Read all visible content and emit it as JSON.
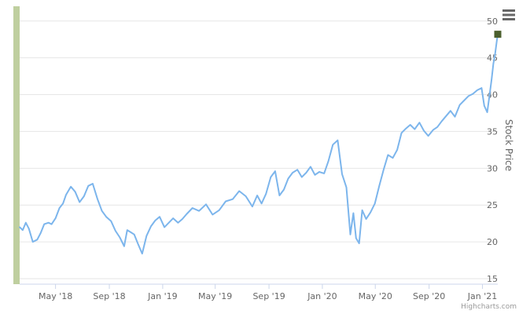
{
  "chart_data": {
    "type": "line",
    "ylabel": "Stock Price",
    "ylim": [
      15,
      52
    ],
    "y_ticks": [
      15,
      20,
      25,
      30,
      35,
      40,
      45,
      50
    ],
    "x_ticks": [
      "May '18",
      "Sep '18",
      "Jan '19",
      "May '19",
      "Sep '19",
      "Jan '20",
      "May '20",
      "Sep '20",
      "Jan '21"
    ],
    "x_tick_dates": [
      "2018-05-01",
      "2018-09-01",
      "2019-01-01",
      "2019-05-01",
      "2019-09-01",
      "2020-01-01",
      "2020-05-01",
      "2020-09-01",
      "2021-01-01"
    ],
    "xlim": [
      "2018-02-08",
      "2021-02-05"
    ],
    "grid": true,
    "legend": "none",
    "y_axis_side": "right",
    "series": [
      {
        "color": "#7cb5ec",
        "x": [
          "2018-02-08",
          "2018-02-15",
          "2018-02-22",
          "2018-03-01",
          "2018-03-10",
          "2018-03-20",
          "2018-03-28",
          "2018-04-05",
          "2018-04-15",
          "2018-04-22",
          "2018-05-01",
          "2018-05-10",
          "2018-05-18",
          "2018-05-25",
          "2018-06-05",
          "2018-06-15",
          "2018-06-25",
          "2018-07-05",
          "2018-07-15",
          "2018-07-25",
          "2018-08-05",
          "2018-08-15",
          "2018-08-25",
          "2018-09-05",
          "2018-09-15",
          "2018-09-25",
          "2018-10-05",
          "2018-10-12",
          "2018-10-20",
          "2018-10-28",
          "2018-11-05",
          "2018-11-15",
          "2018-11-25",
          "2018-12-05",
          "2018-12-15",
          "2018-12-25",
          "2019-01-05",
          "2019-01-15",
          "2019-01-25",
          "2019-02-05",
          "2019-02-15",
          "2019-02-25",
          "2019-03-10",
          "2019-03-25",
          "2019-04-10",
          "2019-04-25",
          "2019-05-10",
          "2019-05-25",
          "2019-06-10",
          "2019-06-25",
          "2019-07-10",
          "2019-07-25",
          "2019-08-05",
          "2019-08-15",
          "2019-08-25",
          "2019-09-05",
          "2019-09-15",
          "2019-09-25",
          "2019-10-05",
          "2019-10-15",
          "2019-10-25",
          "2019-11-05",
          "2019-11-15",
          "2019-11-25",
          "2019-12-05",
          "2019-12-15",
          "2019-12-25",
          "2020-01-05",
          "2020-01-15",
          "2020-01-25",
          "2020-02-05",
          "2020-02-15",
          "2020-02-25",
          "2020-03-05",
          "2020-03-12",
          "2020-03-18",
          "2020-03-25",
          "2020-04-01",
          "2020-04-10",
          "2020-04-20",
          "2020-04-30",
          "2020-05-10",
          "2020-05-20",
          "2020-05-30",
          "2020-06-10",
          "2020-06-20",
          "2020-06-30",
          "2020-07-10",
          "2020-07-20",
          "2020-07-30",
          "2020-08-10",
          "2020-08-20",
          "2020-08-30",
          "2020-09-10",
          "2020-09-20",
          "2020-09-30",
          "2020-10-10",
          "2020-10-20",
          "2020-10-30",
          "2020-11-10",
          "2020-11-20",
          "2020-11-30",
          "2020-12-10",
          "2020-12-20",
          "2020-12-30",
          "2021-01-05",
          "2021-01-12",
          "2021-01-18",
          "2021-01-22",
          "2021-01-26",
          "2021-01-30",
          "2021-02-03",
          "2021-02-05"
        ],
        "y": [
          22.0,
          21.6,
          22.6,
          21.8,
          20.0,
          20.3,
          21.2,
          22.4,
          22.6,
          22.4,
          23.2,
          24.6,
          25.2,
          26.4,
          27.5,
          26.8,
          25.4,
          26.2,
          27.6,
          27.9,
          25.8,
          24.2,
          23.4,
          22.8,
          21.5,
          20.6,
          19.4,
          21.6,
          21.3,
          21.0,
          19.8,
          18.4,
          20.8,
          22.1,
          22.9,
          23.4,
          22.0,
          22.6,
          23.2,
          22.6,
          23.1,
          23.8,
          24.6,
          24.2,
          25.1,
          23.7,
          24.3,
          25.5,
          25.8,
          26.9,
          26.2,
          24.8,
          26.3,
          25.2,
          26.5,
          28.8,
          29.6,
          26.3,
          27.1,
          28.6,
          29.4,
          29.8,
          28.8,
          29.4,
          30.2,
          29.1,
          29.5,
          29.3,
          31.0,
          33.2,
          33.8,
          29.2,
          27.4,
          21.0,
          23.9,
          20.5,
          19.8,
          24.3,
          23.1,
          24.0,
          25.2,
          27.6,
          29.8,
          31.8,
          31.4,
          32.5,
          34.8,
          35.4,
          35.9,
          35.3,
          36.2,
          35.1,
          34.4,
          35.2,
          35.6,
          36.4,
          37.1,
          37.8,
          37.0,
          38.6,
          39.2,
          39.8,
          40.1,
          40.6,
          40.9,
          38.5,
          37.6,
          40.3,
          42.1,
          44.2,
          45.6,
          47.4,
          48.2
        ]
      }
    ],
    "last_point_marker": {
      "date": "2021-02-05",
      "value": 48.2,
      "color": "#4b5f2d"
    },
    "navigator_bar_color": "#bfcf9f"
  },
  "toolbar": {
    "menu_icon": "hamburger-menu-icon"
  },
  "credits": {
    "text": "Highcharts.com"
  }
}
